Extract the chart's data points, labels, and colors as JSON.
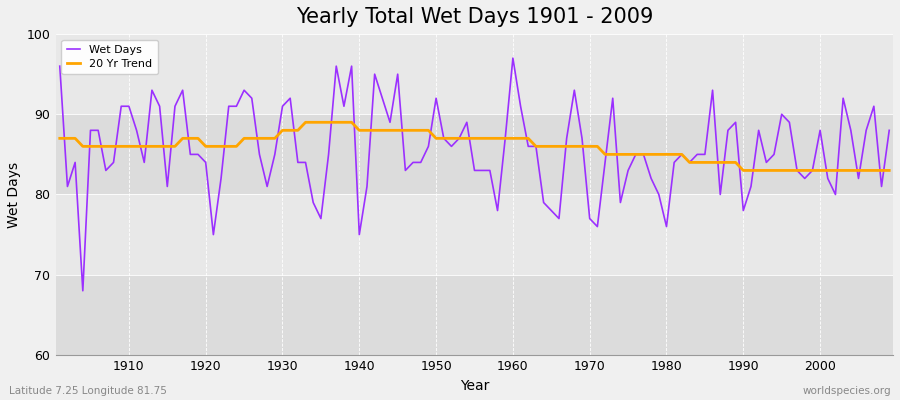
{
  "title": "Yearly Total Wet Days 1901 - 2009",
  "xlabel": "Year",
  "ylabel": "Wet Days",
  "subtitle": "Latitude 7.25 Longitude 81.75",
  "watermark": "worldspecies.org",
  "years": [
    1901,
    1902,
    1903,
    1904,
    1905,
    1906,
    1907,
    1908,
    1909,
    1910,
    1911,
    1912,
    1913,
    1914,
    1915,
    1916,
    1917,
    1918,
    1919,
    1920,
    1921,
    1922,
    1923,
    1924,
    1925,
    1926,
    1927,
    1928,
    1929,
    1930,
    1931,
    1932,
    1933,
    1934,
    1935,
    1936,
    1937,
    1938,
    1939,
    1940,
    1941,
    1942,
    1943,
    1944,
    1945,
    1946,
    1947,
    1948,
    1949,
    1950,
    1951,
    1952,
    1953,
    1954,
    1955,
    1956,
    1957,
    1958,
    1959,
    1960,
    1961,
    1962,
    1963,
    1964,
    1965,
    1966,
    1967,
    1968,
    1969,
    1970,
    1971,
    1972,
    1973,
    1974,
    1975,
    1976,
    1977,
    1978,
    1979,
    1980,
    1981,
    1982,
    1983,
    1984,
    1985,
    1986,
    1987,
    1988,
    1989,
    1990,
    1991,
    1992,
    1993,
    1994,
    1995,
    1996,
    1997,
    1998,
    1999,
    2000,
    2001,
    2002,
    2003,
    2004,
    2005,
    2006,
    2007,
    2008,
    2009
  ],
  "wet_days": [
    96,
    81,
    84,
    68,
    88,
    88,
    83,
    84,
    91,
    91,
    88,
    84,
    93,
    91,
    81,
    91,
    93,
    85,
    85,
    84,
    75,
    82,
    91,
    91,
    93,
    92,
    85,
    81,
    85,
    91,
    92,
    84,
    84,
    79,
    77,
    85,
    96,
    91,
    96,
    75,
    81,
    95,
    92,
    89,
    95,
    83,
    84,
    84,
    86,
    92,
    87,
    86,
    87,
    89,
    83,
    83,
    83,
    78,
    87,
    97,
    91,
    86,
    86,
    79,
    78,
    77,
    87,
    93,
    87,
    77,
    76,
    84,
    92,
    79,
    83,
    85,
    85,
    82,
    80,
    76,
    84,
    85,
    84,
    85,
    85,
    93,
    80,
    88,
    89,
    78,
    81,
    88,
    84,
    85,
    90,
    89,
    83,
    82,
    83,
    88,
    82,
    80,
    92,
    88,
    82,
    88,
    91,
    81,
    88
  ],
  "trend_years": [
    1901,
    1902,
    1903,
    1904,
    1905,
    1906,
    1907,
    1908,
    1909,
    1910,
    1911,
    1912,
    1913,
    1914,
    1915,
    1916,
    1917,
    1918,
    1919,
    1920,
    1921,
    1922,
    1923,
    1924,
    1925,
    1926,
    1927,
    1928,
    1929,
    1930,
    1931,
    1932,
    1933,
    1934,
    1935,
    1936,
    1937,
    1938,
    1939,
    1940,
    1941,
    1942,
    1943,
    1944,
    1945,
    1946,
    1947,
    1948,
    1949,
    1950,
    1951,
    1952,
    1953,
    1954,
    1955,
    1956,
    1957,
    1958,
    1959,
    1960,
    1961,
    1962,
    1963,
    1964,
    1965,
    1966,
    1967,
    1968,
    1969,
    1970,
    1971,
    1972,
    1973,
    1974,
    1975,
    1976,
    1977,
    1978,
    1979,
    1980,
    1981,
    1982,
    1983,
    1984,
    1985,
    1986,
    1987,
    1988,
    1989,
    1990,
    1991,
    1992,
    1993,
    1994,
    1995,
    1996,
    1997,
    1998,
    1999,
    2000,
    2001,
    2002,
    2003,
    2004,
    2005,
    2006,
    2007,
    2008,
    2009
  ],
  "trend_values": [
    87,
    87,
    87,
    86,
    86,
    86,
    86,
    86,
    86,
    86,
    86,
    86,
    86,
    86,
    86,
    86,
    87,
    87,
    87,
    86,
    86,
    86,
    86,
    86,
    87,
    87,
    87,
    87,
    87,
    88,
    88,
    88,
    89,
    89,
    89,
    89,
    89,
    89,
    89,
    88,
    88,
    88,
    88,
    88,
    88,
    88,
    88,
    88,
    88,
    87,
    87,
    87,
    87,
    87,
    87,
    87,
    87,
    87,
    87,
    87,
    87,
    87,
    86,
    86,
    86,
    86,
    86,
    86,
    86,
    86,
    86,
    85,
    85,
    85,
    85,
    85,
    85,
    85,
    85,
    85,
    85,
    85,
    84,
    84,
    84,
    84,
    84,
    84,
    84,
    83,
    83,
    83,
    83,
    83,
    83,
    83,
    83,
    83,
    83,
    83,
    83,
    83,
    83,
    83,
    83,
    83,
    83,
    83,
    83
  ],
  "line_color": "#9B30FF",
  "trend_color": "#FFA500",
  "fig_bg_color": "#F0F0F0",
  "plot_bg_color": "#E8E8E8",
  "band_colors": [
    "#DCDCDC",
    "#E8E8E8"
  ],
  "ylim": [
    60,
    100
  ],
  "yticks": [
    60,
    70,
    80,
    90,
    100
  ],
  "xticks": [
    1910,
    1920,
    1930,
    1940,
    1950,
    1960,
    1970,
    1980,
    1990,
    2000
  ],
  "title_fontsize": 15,
  "axis_label_fontsize": 10,
  "tick_fontsize": 9,
  "legend_fontsize": 8,
  "figsize": [
    9.0,
    4.0
  ],
  "dpi": 100
}
